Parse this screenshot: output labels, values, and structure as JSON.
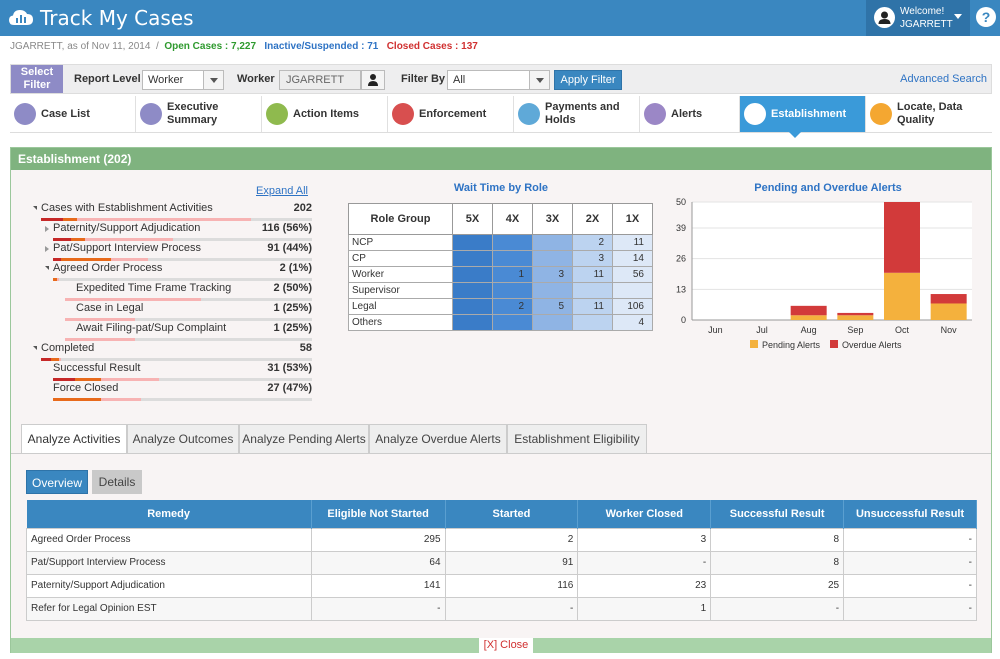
{
  "header": {
    "app_title": "Track My Cases",
    "welcome": "Welcome!",
    "user": "JGARRETT"
  },
  "status": {
    "prefix": "JGARRETT, as of Nov 11, 2014",
    "separator": "/",
    "open": "Open Cases : 7,227",
    "inactive": "Inactive/Suspended : 71",
    "closed": "Closed Cases : 137"
  },
  "filter": {
    "select_filter": "Select Filter",
    "report_level_label": "Report Level",
    "report_level_value": "Worker",
    "worker_label": "Worker",
    "worker_value": "JGARRETT",
    "filter_by_label": "Filter By",
    "filter_by_value": "All",
    "apply": "Apply Filter",
    "advanced_search": "Advanced Search"
  },
  "nav": {
    "items": [
      {
        "label": "Case List",
        "color": "#8e8bc6"
      },
      {
        "label": "Executive Summary",
        "color": "#8e8bc6"
      },
      {
        "label": "Action Items",
        "color": "#8fba4e"
      },
      {
        "label": "Enforcement",
        "color": "#d84f4f"
      },
      {
        "label": "Payments and Holds",
        "color": "#5fa9d8"
      },
      {
        "label": "Alerts",
        "color": "#9b87c6"
      },
      {
        "label": "Establishment",
        "color": "#ffffff"
      },
      {
        "label": "Locate, Data Quality",
        "color": "#f4a731"
      }
    ],
    "active_index": 6
  },
  "panel": {
    "title": "Establishment (202)",
    "expand_all": "Expand All"
  },
  "tree": [
    {
      "label": "Cases with Establishment Activities",
      "value": "202",
      "level": 0,
      "toggle": "open"
    },
    {
      "label": "Paternity/Support Adjudication",
      "value": "116 (56%)",
      "level": 1,
      "toggle": "closed"
    },
    {
      "label": "Pat/Support Interview Process",
      "value": "91 (44%)",
      "level": 1,
      "toggle": "closed"
    },
    {
      "label": "Agreed Order Process",
      "value": "2 (1%)",
      "level": 1,
      "toggle": "open"
    },
    {
      "label": "Expedited Time Frame Tracking",
      "value": "2 (50%)",
      "level": 2,
      "toggle": ""
    },
    {
      "label": "Case in Legal",
      "value": "1 (25%)",
      "level": 2,
      "toggle": ""
    },
    {
      "label": "Await Filing-pat/Sup Complaint",
      "value": "1 (25%)",
      "level": 2,
      "toggle": ""
    },
    {
      "label": "Completed",
      "value": "58",
      "level": 0,
      "toggle": "open"
    },
    {
      "label": "Successful Result",
      "value": "31 (53%)",
      "level": 1,
      "toggle": ""
    },
    {
      "label": "Force Closed",
      "value": "27 (47%)",
      "level": 1,
      "toggle": ""
    }
  ],
  "wait_time": {
    "title": "Wait Time by Role",
    "columns": [
      "Role Group",
      "5X",
      "4X",
      "3X",
      "2X",
      "1X"
    ],
    "rows": [
      {
        "role": "NCP",
        "cells": [
          "",
          "",
          "",
          "2",
          "11"
        ]
      },
      {
        "role": "CP",
        "cells": [
          "",
          "",
          "",
          "3",
          "14"
        ]
      },
      {
        "role": "Worker",
        "cells": [
          "",
          "1",
          "3",
          "11",
          "56"
        ]
      },
      {
        "role": "Supervisor",
        "cells": [
          "",
          "",
          "",
          "",
          ""
        ]
      },
      {
        "role": "Legal",
        "cells": [
          "",
          "2",
          "5",
          "11",
          "106"
        ]
      },
      {
        "role": "Others",
        "cells": [
          "",
          "",
          "",
          "",
          "4"
        ]
      }
    ],
    "col_colors": [
      "#3a7cc8",
      "#4a8ad4",
      "#8fb4e4",
      "#bcd3f0",
      "#dde8f7"
    ]
  },
  "chart_data": {
    "type": "bar",
    "title": "Pending and Overdue Alerts",
    "categories": [
      "Jun",
      "Jul",
      "Aug",
      "Sep",
      "Oct",
      "Nov"
    ],
    "series": [
      {
        "name": "Pending Alerts",
        "values": [
          0,
          0,
          2,
          2,
          20,
          7
        ],
        "color": "#f4b13d"
      },
      {
        "name": "Overdue Alerts",
        "values": [
          0,
          0,
          4,
          1,
          30,
          4
        ],
        "color": "#d23a3a"
      }
    ],
    "stacked": true,
    "yticks": [
      0,
      13,
      26,
      39,
      50
    ],
    "ylim": [
      0,
      50
    ],
    "legend": "bottom"
  },
  "tabs": {
    "items": [
      "Analyze Activities",
      "Analyze Outcomes",
      "Analyze Pending Alerts",
      "Analyze Overdue Alerts",
      "Establishment Eligibility"
    ],
    "active_index": 0
  },
  "subtabs": {
    "overview": "Overview",
    "details": "Details"
  },
  "remedy_table": {
    "headers": [
      "Remedy",
      "Eligible Not Started",
      "Started",
      "Worker Closed",
      "Successful Result",
      "Unsuccessful Result"
    ],
    "rows": [
      [
        "Agreed Order Process",
        "295",
        "2",
        "3",
        "8",
        "-"
      ],
      [
        "Pat/Support Interview Process",
        "64",
        "91",
        "-",
        "8",
        "-"
      ],
      [
        "Paternity/Support Adjudication",
        "141",
        "116",
        "23",
        "25",
        "-"
      ],
      [
        "Refer for Legal Opinion EST",
        "-",
        "-",
        "1",
        "-",
        "-"
      ]
    ]
  },
  "close_label": "[X] Close"
}
